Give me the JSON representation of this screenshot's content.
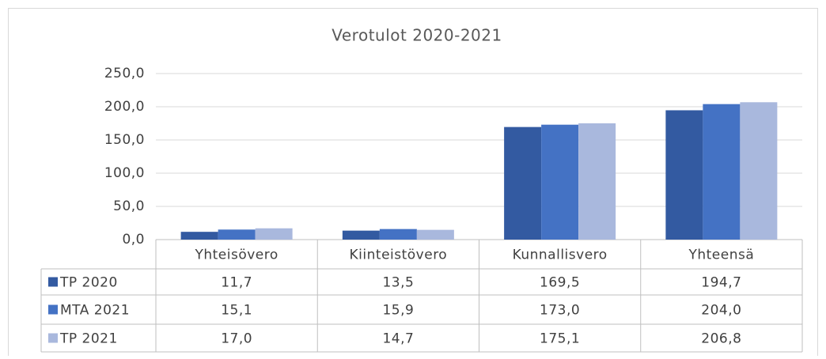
{
  "chart_data": {
    "type": "bar",
    "title": "Verotulot 2020-2021",
    "categories": [
      "Yhteisövero",
      "Kiinteistövero",
      "Kunnallisvero",
      "Yhteensä"
    ],
    "series": [
      {
        "name": "TP 2020",
        "color": "#335aa1",
        "values": [
          11.7,
          13.5,
          169.5,
          194.7
        ],
        "value_labels": [
          "11,7",
          "13,5",
          "169,5",
          "194,7"
        ]
      },
      {
        "name": "MTA 2021",
        "color": "#4472c4",
        "values": [
          15.1,
          15.9,
          173.0,
          204.0
        ],
        "value_labels": [
          "15,1",
          "15,9",
          "173,0",
          "204,0"
        ]
      },
      {
        "name": "TP 2021",
        "color": "#a9b8dd",
        "values": [
          17.0,
          14.7,
          175.1,
          206.8
        ],
        "value_labels": [
          "17,0",
          "14,7",
          "175,1",
          "206,8"
        ]
      }
    ],
    "ylim": [
      0,
      250
    ],
    "yticks": [
      {
        "value": 0,
        "label": "0,0"
      },
      {
        "value": 50,
        "label": "50,0"
      },
      {
        "value": 100,
        "label": "100,0"
      },
      {
        "value": 150,
        "label": "150,0"
      },
      {
        "value": 200,
        "label": "200,0"
      },
      {
        "value": 250,
        "label": "250,0"
      }
    ],
    "grid": true
  }
}
